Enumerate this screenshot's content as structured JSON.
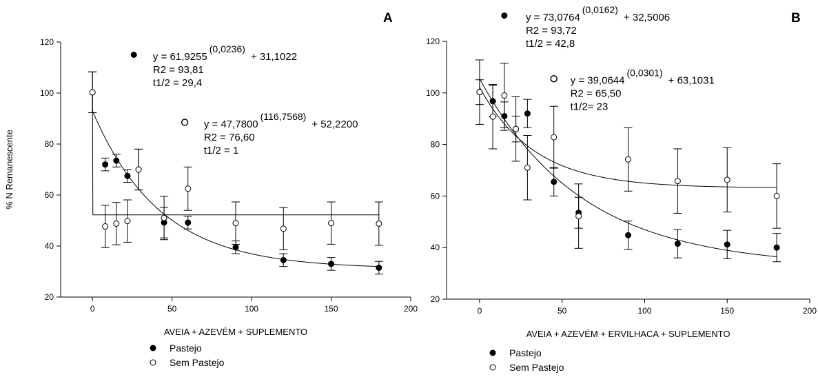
{
  "chart_data": [
    {
      "panel": "A",
      "type": "scatter",
      "ylabel": "% N Remanescente",
      "xlabel": "AVEIA + AZEVÉM + SUPLEMENTO",
      "xlim": [
        -20,
        200
      ],
      "ylim": [
        20,
        120
      ],
      "xticks": [
        0,
        50,
        100,
        150,
        200
      ],
      "yticks": [
        20,
        40,
        60,
        80,
        100,
        120
      ],
      "grid": false,
      "series": [
        {
          "name": "Pastejo",
          "marker": "filled-circle",
          "x": [
            0,
            8,
            15,
            22,
            29,
            45,
            60,
            90,
            120,
            150,
            180
          ],
          "y": [
            100.3,
            72.0,
            73.5,
            67.5,
            70.0,
            49.2,
            49.2,
            39.5,
            34.5,
            33.0,
            31.5
          ],
          "err": [
            8.0,
            2.5,
            2.5,
            2.5,
            8.0,
            6.0,
            2.5,
            2.5,
            2.5,
            2.5,
            2.5
          ],
          "fit": {
            "a": 61.9255,
            "k": 0.0236,
            "c": 31.1022
          }
        },
        {
          "name": "Sem Pastejo",
          "marker": "open-circle",
          "x": [
            0,
            8,
            15,
            22,
            29,
            45,
            60,
            90,
            120,
            150,
            180
          ],
          "y": [
            100.3,
            47.7,
            48.8,
            49.8,
            70.0,
            51.0,
            62.5,
            49.0,
            46.8,
            49.0,
            48.8
          ],
          "err": [
            8.0,
            8.3,
            8.3,
            8.3,
            8.0,
            8.5,
            8.5,
            8.3,
            8.3,
            8.3,
            8.5
          ],
          "fit": {
            "a": 47.78,
            "k": 116.7568,
            "c": 52.22
          }
        }
      ],
      "annotations": [
        {
          "marker": "filled-circle",
          "mx": 26,
          "my": 115,
          "tx": 38,
          "ty": 113,
          "eq_main": "y = 61,9255",
          "eq_exp": "(0,0236)",
          "eq_tail": "+ 31,1022",
          "r2": "R2 = 93,81",
          "half_life": "t1/2 = 29,4"
        },
        {
          "marker": "open-circle",
          "mx": 58,
          "my": 88.5,
          "tx": 70,
          "ty": 86.5,
          "eq_main": "y = 47,7800",
          "eq_exp": "(116,7568)",
          "eq_tail": "+ 52,2200",
          "r2": "R2 = 76,60",
          "half_life": "t1/2 = 1"
        }
      ],
      "legend": {
        "placement": "bottom-center",
        "items": [
          "Pastejo",
          "Sem Pastejo"
        ]
      }
    },
    {
      "panel": "B",
      "type": "scatter",
      "ylabel": "",
      "xlabel": "AVEIA + AZEVÉM + ERVILHACA + SUPLEMENTO",
      "xlim": [
        -20,
        200
      ],
      "ylim": [
        20,
        120
      ],
      "xticks": [
        0,
        50,
        100,
        150,
        200
      ],
      "yticks": [
        20,
        40,
        60,
        80,
        100,
        120
      ],
      "grid": false,
      "series": [
        {
          "name": "Pastejo",
          "marker": "filled-circle",
          "x": [
            0,
            8,
            15,
            22,
            29,
            45,
            60,
            90,
            120,
            150,
            180
          ],
          "y": [
            100.3,
            96.8,
            91.0,
            86.0,
            92.0,
            65.5,
            53.5,
            44.8,
            41.5,
            41.2,
            40.0
          ],
          "err": [
            4.8,
            6.0,
            5.5,
            5.0,
            5.5,
            5.5,
            6.0,
            5.5,
            5.5,
            5.5,
            5.5
          ],
          "fit": {
            "a": 73.0764,
            "k": 0.0162,
            "c": 32.5006
          }
        },
        {
          "name": "Sem Pastejo",
          "marker": "open-circle",
          "x": [
            0,
            8,
            15,
            22,
            29,
            45,
            60,
            90,
            120,
            150,
            180
          ],
          "y": [
            100.3,
            90.8,
            99.0,
            86.0,
            71.0,
            82.8,
            52.2,
            74.2,
            65.8,
            66.3,
            60.0
          ],
          "err": [
            12.5,
            12.5,
            12.5,
            12.5,
            12.5,
            12.0,
            12.5,
            12.3,
            12.5,
            12.5,
            12.5
          ],
          "fit": {
            "a": 39.0644,
            "k": 0.0301,
            "c": 63.1031
          }
        }
      ],
      "annotations": [
        {
          "marker": "filled-circle",
          "mx": 15,
          "my": 130,
          "tx": 28,
          "ty": 128,
          "eq_main": "y = 73,0764",
          "eq_exp": "(0,0162)",
          "eq_tail": "+ 32,5006",
          "r2": "R2 = 93,72",
          "half_life": "t1/2 = 42,8"
        },
        {
          "marker": "open-circle",
          "mx": 45,
          "my": 105.5,
          "tx": 55,
          "ty": 103.5,
          "eq_main": "y = 39,0644",
          "eq_exp": "(0,0301)",
          "eq_tail": "+ 63,1031",
          "r2": "R2 = 65,50",
          "half_life": "t1/2= 23"
        }
      ],
      "legend": {
        "placement": "bottom-center",
        "items": [
          "Pastejo",
          "Sem Pastejo"
        ]
      }
    }
  ]
}
